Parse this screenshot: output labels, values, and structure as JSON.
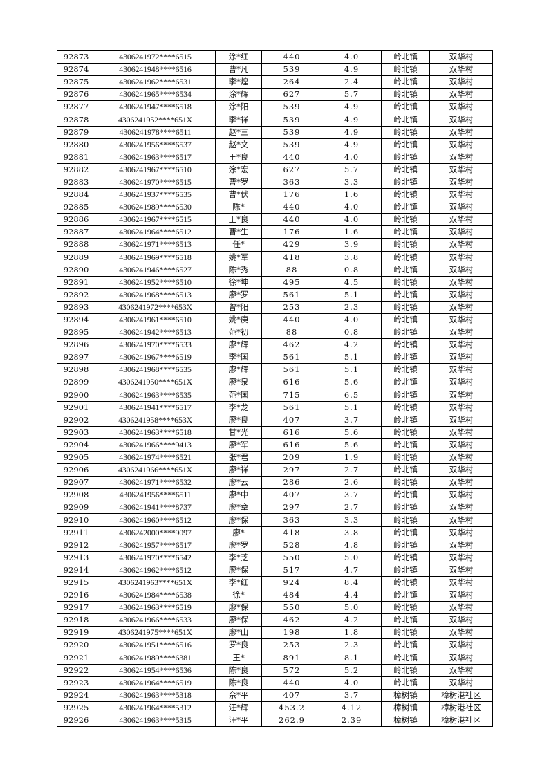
{
  "table": {
    "rows": [
      [
        "92873",
        "4306241972****6515",
        "涂*红",
        "440",
        "4.0",
        "岭北镇",
        "双华村"
      ],
      [
        "92874",
        "4306241948****6516",
        "曹*凡",
        "539",
        "4.9",
        "岭北镇",
        "双华村"
      ],
      [
        "92875",
        "4306241962****6531",
        "李*煌",
        "264",
        "2.4",
        "岭北镇",
        "双华村"
      ],
      [
        "92876",
        "4306241965****6534",
        "涂*辉",
        "627",
        "5.7",
        "岭北镇",
        "双华村"
      ],
      [
        "92877",
        "4306241947****6518",
        "涂*阳",
        "539",
        "4.9",
        "岭北镇",
        "双华村"
      ],
      [
        "92878",
        "4306241952****651X",
        "李*祥",
        "539",
        "4.9",
        "岭北镇",
        "双华村"
      ],
      [
        "92879",
        "4306241978****6511",
        "赵*三",
        "539",
        "4.9",
        "岭北镇",
        "双华村"
      ],
      [
        "92880",
        "4306241956****6537",
        "赵*文",
        "539",
        "4.9",
        "岭北镇",
        "双华村"
      ],
      [
        "92881",
        "4306241963****6517",
        "王*良",
        "440",
        "4.0",
        "岭北镇",
        "双华村"
      ],
      [
        "92882",
        "4306241967****6510",
        "涂*宏",
        "627",
        "5.7",
        "岭北镇",
        "双华村"
      ],
      [
        "92883",
        "4306241970****6515",
        "曹*罗",
        "363",
        "3.3",
        "岭北镇",
        "双华村"
      ],
      [
        "92884",
        "4306241937****6535",
        "曹*伏",
        "176",
        "1.6",
        "岭北镇",
        "双华村"
      ],
      [
        "92885",
        "4306241989****6530",
        "陈*",
        "440",
        "4.0",
        "岭北镇",
        "双华村"
      ],
      [
        "92886",
        "4306241967****6515",
        "王*良",
        "440",
        "4.0",
        "岭北镇",
        "双华村"
      ],
      [
        "92887",
        "4306241964****6512",
        "曹*生",
        "176",
        "1.6",
        "岭北镇",
        "双华村"
      ],
      [
        "92888",
        "4306241971****6513",
        "任*",
        "429",
        "3.9",
        "岭北镇",
        "双华村"
      ],
      [
        "92889",
        "4306241969****6518",
        "姚*军",
        "418",
        "3.8",
        "岭北镇",
        "双华村"
      ],
      [
        "92890",
        "4306241946****6527",
        "陈*秀",
        "88",
        "0.8",
        "岭北镇",
        "双华村"
      ],
      [
        "92891",
        "4306241952****6510",
        "徐*坤",
        "495",
        "4.5",
        "岭北镇",
        "双华村"
      ],
      [
        "92892",
        "4306241968****6513",
        "廖*罗",
        "561",
        "5.1",
        "岭北镇",
        "双华村"
      ],
      [
        "92893",
        "4306241972****653X",
        "曾*阳",
        "253",
        "2.3",
        "岭北镇",
        "双华村"
      ],
      [
        "92894",
        "4306241961****6510",
        "姚*庚",
        "440",
        "4.0",
        "岭北镇",
        "双华村"
      ],
      [
        "92895",
        "4306241942****6513",
        "范*初",
        "88",
        "0.8",
        "岭北镇",
        "双华村"
      ],
      [
        "92896",
        "4306241970****6533",
        "廖*辉",
        "462",
        "4.2",
        "岭北镇",
        "双华村"
      ],
      [
        "92897",
        "4306241967****6519",
        "李*国",
        "561",
        "5.1",
        "岭北镇",
        "双华村"
      ],
      [
        "92898",
        "4306241968****6535",
        "廖*辉",
        "561",
        "5.1",
        "岭北镇",
        "双华村"
      ],
      [
        "92899",
        "4306241950****651X",
        "廖*泉",
        "616",
        "5.6",
        "岭北镇",
        "双华村"
      ],
      [
        "92900",
        "4306241963****6535",
        "范*国",
        "715",
        "6.5",
        "岭北镇",
        "双华村"
      ],
      [
        "92901",
        "4306241941****6517",
        "李*龙",
        "561",
        "5.1",
        "岭北镇",
        "双华村"
      ],
      [
        "92902",
        "4306241958****653X",
        "廖*良",
        "407",
        "3.7",
        "岭北镇",
        "双华村"
      ],
      [
        "92903",
        "4306241963****6518",
        "甘*光",
        "616",
        "5.6",
        "岭北镇",
        "双华村"
      ],
      [
        "92904",
        "4306241966****9413",
        "廖*军",
        "616",
        "5.6",
        "岭北镇",
        "双华村"
      ],
      [
        "92905",
        "4306241974****6521",
        "张*君",
        "209",
        "1.9",
        "岭北镇",
        "双华村"
      ],
      [
        "92906",
        "4306241966****651X",
        "廖*祥",
        "297",
        "2.7",
        "岭北镇",
        "双华村"
      ],
      [
        "92907",
        "4306241971****6532",
        "廖*云",
        "286",
        "2.6",
        "岭北镇",
        "双华村"
      ],
      [
        "92908",
        "4306241956****6511",
        "廖*中",
        "407",
        "3.7",
        "岭北镇",
        "双华村"
      ],
      [
        "92909",
        "4306241941****8737",
        "廖*章",
        "297",
        "2.7",
        "岭北镇",
        "双华村"
      ],
      [
        "92910",
        "4306241960****6512",
        "廖*保",
        "363",
        "3.3",
        "岭北镇",
        "双华村"
      ],
      [
        "92911",
        "4306242000****9097",
        "廖*",
        "418",
        "3.8",
        "岭北镇",
        "双华村"
      ],
      [
        "92912",
        "4306241957****6517",
        "廖*罗",
        "528",
        "4.8",
        "岭北镇",
        "双华村"
      ],
      [
        "92913",
        "4306241970****6542",
        "李*芝",
        "550",
        "5.0",
        "岭北镇",
        "双华村"
      ],
      [
        "92914",
        "4306241962****6512",
        "廖*保",
        "517",
        "4.7",
        "岭北镇",
        "双华村"
      ],
      [
        "92915",
        "4306241963****651X",
        "李*红",
        "924",
        "8.4",
        "岭北镇",
        "双华村"
      ],
      [
        "92916",
        "4306241984****6538",
        "徐*",
        "484",
        "4.4",
        "岭北镇",
        "双华村"
      ],
      [
        "92917",
        "4306241963****6519",
        "廖*保",
        "550",
        "5.0",
        "岭北镇",
        "双华村"
      ],
      [
        "92918",
        "4306241966****6533",
        "廖*保",
        "462",
        "4.2",
        "岭北镇",
        "双华村"
      ],
      [
        "92919",
        "4306241975****651X",
        "廖*山",
        "198",
        "1.8",
        "岭北镇",
        "双华村"
      ],
      [
        "92920",
        "4306241951****6516",
        "罗*良",
        "253",
        "2.3",
        "岭北镇",
        "双华村"
      ],
      [
        "92921",
        "4306241989****6381",
        "王*",
        "891",
        "8.1",
        "岭北镇",
        "双华村"
      ],
      [
        "92922",
        "4306241954****6536",
        "陈*良",
        "572",
        "5.2",
        "岭北镇",
        "双华村"
      ],
      [
        "92923",
        "4306241964****6519",
        "陈*良",
        "440",
        "4.0",
        "岭北镇",
        "双华村"
      ],
      [
        "92924",
        "4306241963****5318",
        "佘*平",
        "407",
        "3.7",
        "樟树镇",
        "樟树港社区"
      ],
      [
        "92925",
        "4306241964****5312",
        "汪*辉",
        "453.2",
        "4.12",
        "樟树镇",
        "樟树港社区"
      ],
      [
        "92926",
        "4306241963****5315",
        "汪*平",
        "262.9",
        "2.39",
        "樟树镇",
        "樟树港社区"
      ]
    ]
  }
}
